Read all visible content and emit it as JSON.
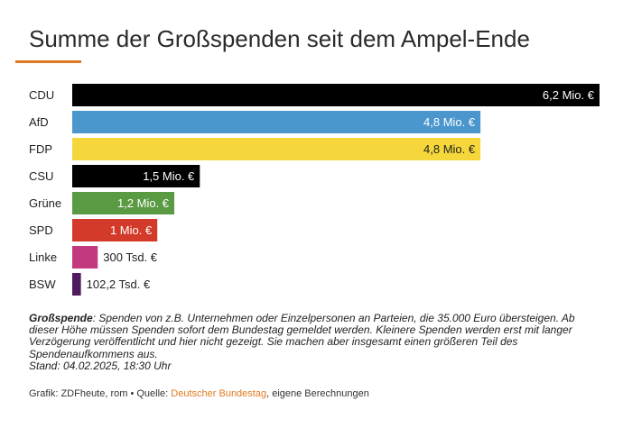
{
  "chart_data": {
    "type": "bar",
    "orientation": "horizontal",
    "title": "Summe der Großspenden seit dem Ampel-Ende",
    "categories": [
      "CDU",
      "AfD",
      "FDP",
      "CSU",
      "Grüne",
      "SPD",
      "Linke",
      "BSW"
    ],
    "values": [
      6.2,
      4.8,
      4.8,
      1.5,
      1.2,
      1.0,
      0.3,
      0.1022
    ],
    "unit": "Mio. €",
    "value_labels": [
      "6,2 Mio. €",
      "4,8 Mio. €",
      "4,8 Mio. €",
      "1,5 Mio. €",
      "1,2 Mio. €",
      "1 Mio. €",
      "300 Tsd. €",
      "102,2 Tsd. €"
    ],
    "colors": [
      "#000000",
      "#4a96cd",
      "#f5d73c",
      "#000000",
      "#5a9a43",
      "#d33a2a",
      "#c2397f",
      "#4f1a5e"
    ],
    "label_colors": [
      "#ffffff",
      "#ffffff",
      "#222222",
      "#ffffff",
      "#ffffff",
      "#ffffff",
      "#222222",
      "#222222"
    ],
    "xlim": [
      0,
      6.2
    ],
    "xlabel": "",
    "ylabel": ""
  },
  "note": {
    "term": "Großspende",
    "text": ": Spenden von z.B. Unternehmen oder Einzelpersonen an Parteien, die 35.000 Euro übersteigen. Ab dieser Höhe müssen Spenden sofort dem Bundestag gemeldet werden. Kleinere Spenden werden erst mit langer Verzögerung veröffentlicht und hier nicht gezeigt. Sie machen aber insgesamt einen größeren Teil des Spendenaufkommens aus.",
    "stand": "Stand: 04.02.2025, 18:30 Uhr"
  },
  "credit": {
    "prefix": "Grafik: ZDFheute, rom • Quelle: ",
    "source": "Deutscher Bundestag",
    "suffix": ", eigene Berechnungen"
  }
}
